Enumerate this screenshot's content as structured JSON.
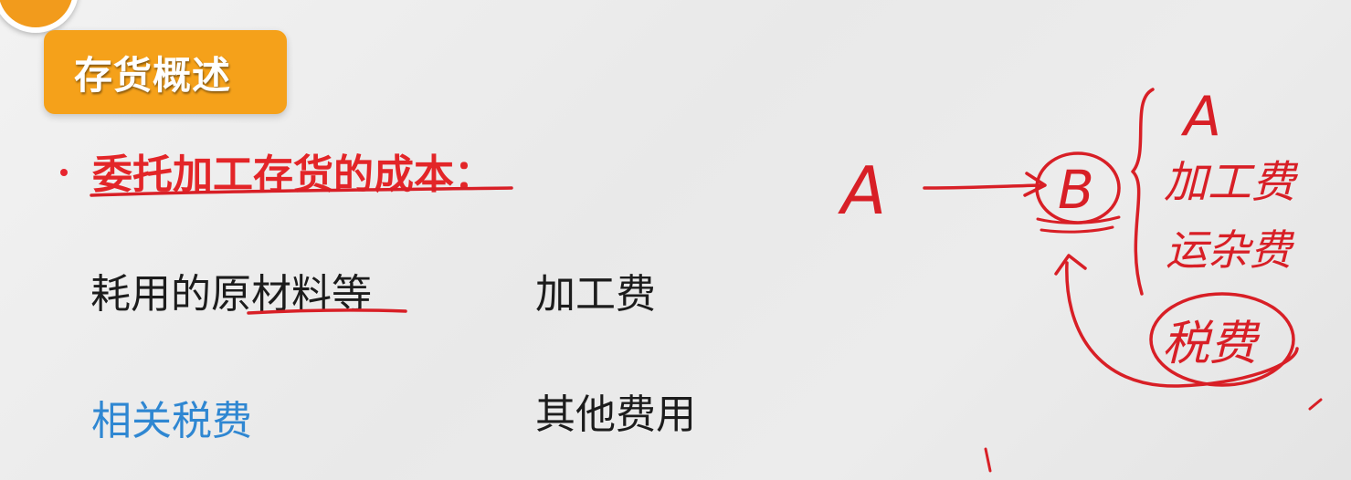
{
  "header": {
    "title": "存货概述"
  },
  "bullet": {
    "text": "委托加工存货的成本："
  },
  "cost_items": {
    "materials": "耗用的原材料等",
    "processing_fee": "加工费",
    "related_taxes": "相关税费",
    "other_fees": "其他费用"
  },
  "annotations": {
    "entity_a": "A",
    "entity_b": "B",
    "brace_a": "A",
    "brace_line2": "加工费",
    "brace_line3": "运杂费",
    "brace_line4": "税费"
  },
  "colors": {
    "title_background": "#f5a11a",
    "bullet_red": "#e32528",
    "taxes_blue": "#2f87d2",
    "ink_red": "#d81f26"
  }
}
